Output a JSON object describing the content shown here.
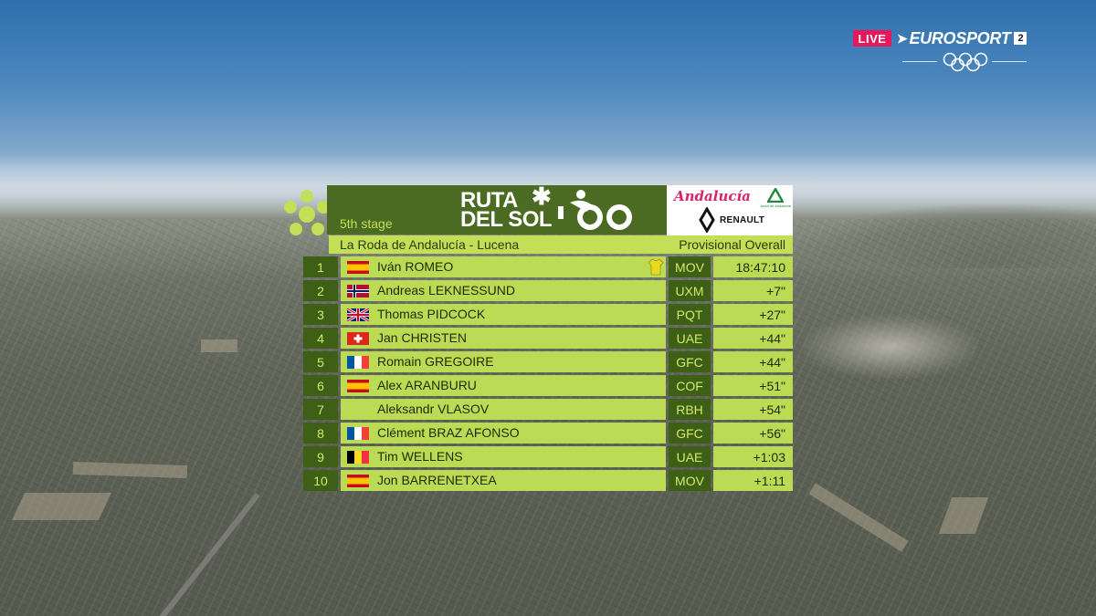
{
  "broadcast": {
    "live_label": "LIVE",
    "network_name": "EUROSPORT",
    "channel_number": "2"
  },
  "graphic": {
    "race_logo_line1": "RUTA",
    "race_logo_line2": "DEL SOL",
    "race_logo_number": "100",
    "stage": "5th stage",
    "route": "La Roda de Andalucía - Lucena",
    "classification": "Provisional Overall",
    "sponsors": {
      "region": "Andalucía",
      "region_sub": "Junta de Andalucía",
      "car_brand": "RENAULT"
    },
    "colors": {
      "dark_green": "#3e5f16",
      "lime": "#bcdb54",
      "header_green": "#4b6a22",
      "leader_jersey": "#e8d81e"
    },
    "standings": [
      {
        "pos": "1",
        "rider": "Iván ROMEO",
        "flag": "spain-flag",
        "team": "MOV",
        "time": "18:47:10",
        "leader_jersey": true
      },
      {
        "pos": "2",
        "rider": "Andreas LEKNESSUND",
        "flag": "norway-flag",
        "team": "UXM",
        "time": "+7\""
      },
      {
        "pos": "3",
        "rider": "Thomas PIDCOCK",
        "flag": "uk-flag",
        "team": "PQT",
        "time": "+27\""
      },
      {
        "pos": "4",
        "rider": "Jan CHRISTEN",
        "flag": "switzerland-flag",
        "team": "UAE",
        "time": "+44\""
      },
      {
        "pos": "5",
        "rider": "Romain GREGOIRE",
        "flag": "france-flag",
        "team": "GFC",
        "time": "+44\""
      },
      {
        "pos": "6",
        "rider": "Alex ARANBURU",
        "flag": "spain-flag",
        "team": "COF",
        "time": "+51\""
      },
      {
        "pos": "7",
        "rider": "Aleksandr VLASOV",
        "flag": "",
        "team": "RBH",
        "time": "+54\""
      },
      {
        "pos": "8",
        "rider": "Clément BRAZ AFONSO",
        "flag": "france-flag",
        "team": "GFC",
        "time": "+56\""
      },
      {
        "pos": "9",
        "rider": "Tim WELLENS",
        "flag": "belgium-flag",
        "team": "UAE",
        "time": "+1:03"
      },
      {
        "pos": "10",
        "rider": "Jon BARRENETXEA",
        "flag": "spain-flag",
        "team": "MOV",
        "time": "+1:11"
      }
    ]
  }
}
